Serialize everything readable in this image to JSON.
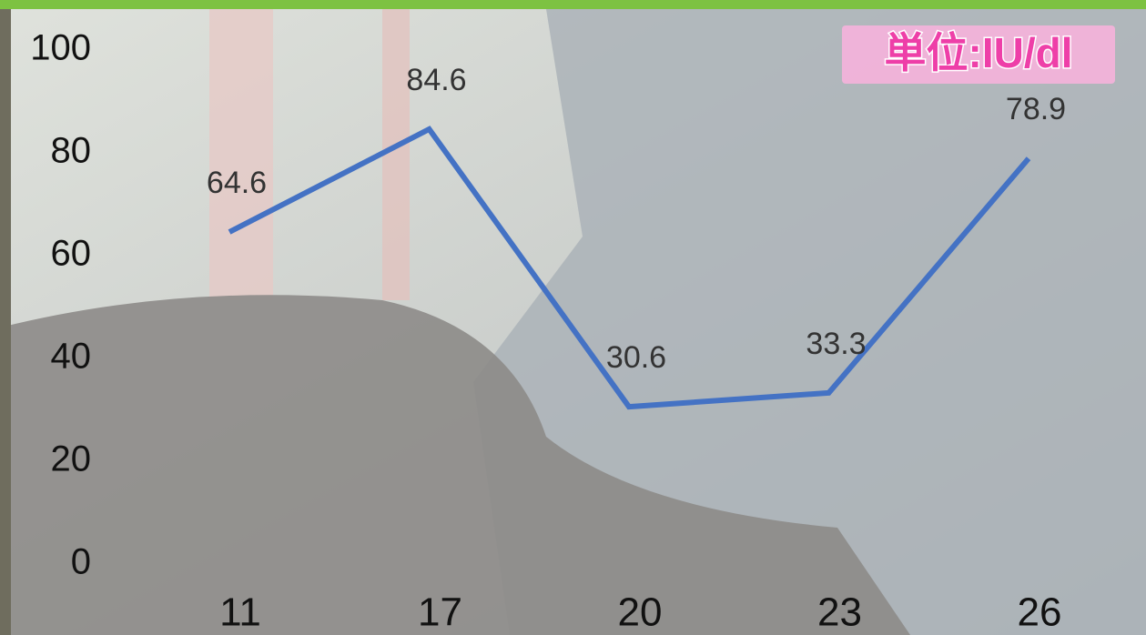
{
  "chart_data": {
    "type": "line",
    "unit_label": "単位:IU/dl",
    "categories": [
      "11",
      "17",
      "20",
      "23",
      "26"
    ],
    "series": [
      {
        "name": "IU/dl",
        "color": "#4472c4",
        "values": [
          64.6,
          84.6,
          30.6,
          33.3,
          78.9
        ]
      }
    ],
    "ylim": [
      0,
      100
    ],
    "yticks": [
      0,
      20,
      40,
      60,
      80,
      100
    ],
    "grid": false
  }
}
